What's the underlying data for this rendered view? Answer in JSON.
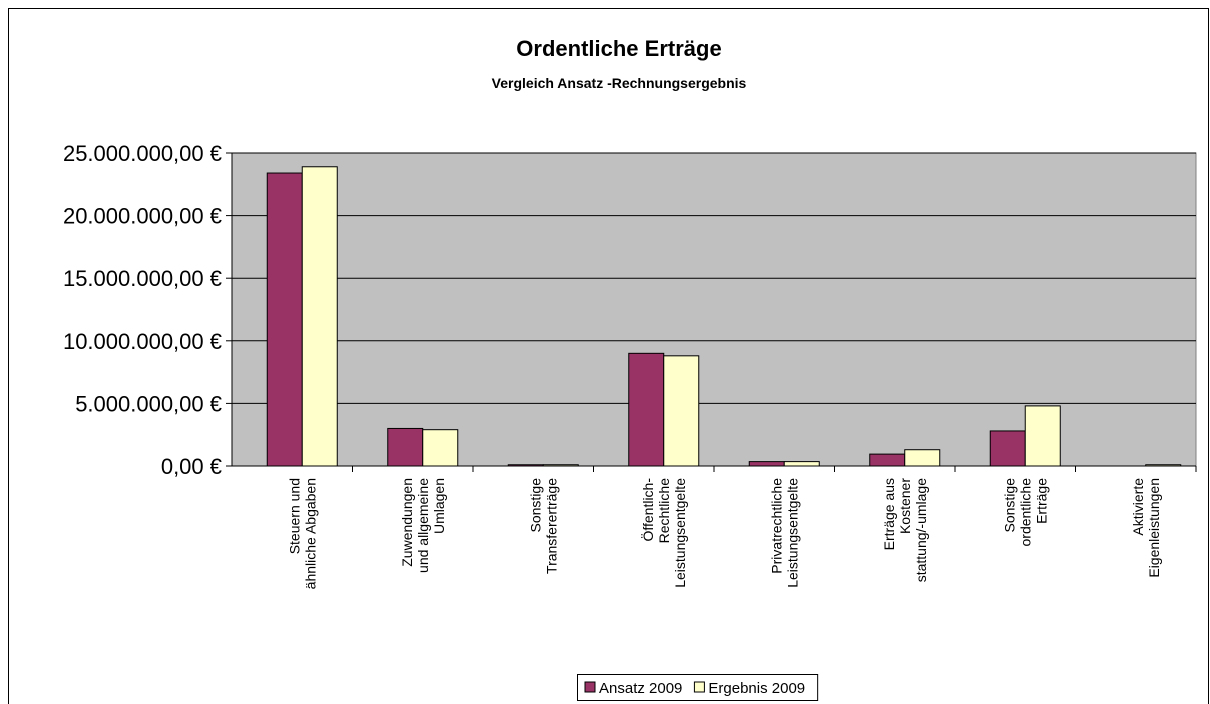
{
  "chart_data": {
    "type": "bar",
    "title": "Ordentliche Erträge",
    "subtitle": "Vergleich Ansatz -Rechnungsergebnis",
    "categories": [
      "Steuern und\nähnliche Abgaben",
      "Zuwendungen\nund allgemeine\nUmlagen",
      "Sonstige\nTransfererträge",
      "Öffentlich-\nRechtliche\nLeistungsentgelte",
      "Privatrechtliche\nLeistungsentgelte",
      "Erträge aus\nKostener\nstattung/-umlage",
      "Sonstige\nordentliche\nErträge",
      "Aktivierte\nEigenleistungen"
    ],
    "series": [
      {
        "name": "Ansatz 2009",
        "color": "#993366",
        "values": [
          23400000,
          3000000,
          100000,
          9000000,
          350000,
          950000,
          2800000,
          0
        ]
      },
      {
        "name": "Ergebnis 2009",
        "color": "#ffffcc",
        "values": [
          23900000,
          2900000,
          100000,
          8800000,
          350000,
          1300000,
          4800000,
          100000
        ]
      }
    ],
    "ylim": [
      0,
      25000000
    ],
    "yticks": [
      {
        "value": 0,
        "label": "0,00 €"
      },
      {
        "value": 5000000,
        "label": "5.000.000,00 €"
      },
      {
        "value": 10000000,
        "label": "10.000.000,00 €"
      },
      {
        "value": 15000000,
        "label": "15.000.000,00 €"
      },
      {
        "value": 20000000,
        "label": "20.000.000,00 €"
      },
      {
        "value": 25000000,
        "label": "25.000.000,00 €"
      }
    ],
    "grid": true,
    "legend": "bottom"
  }
}
